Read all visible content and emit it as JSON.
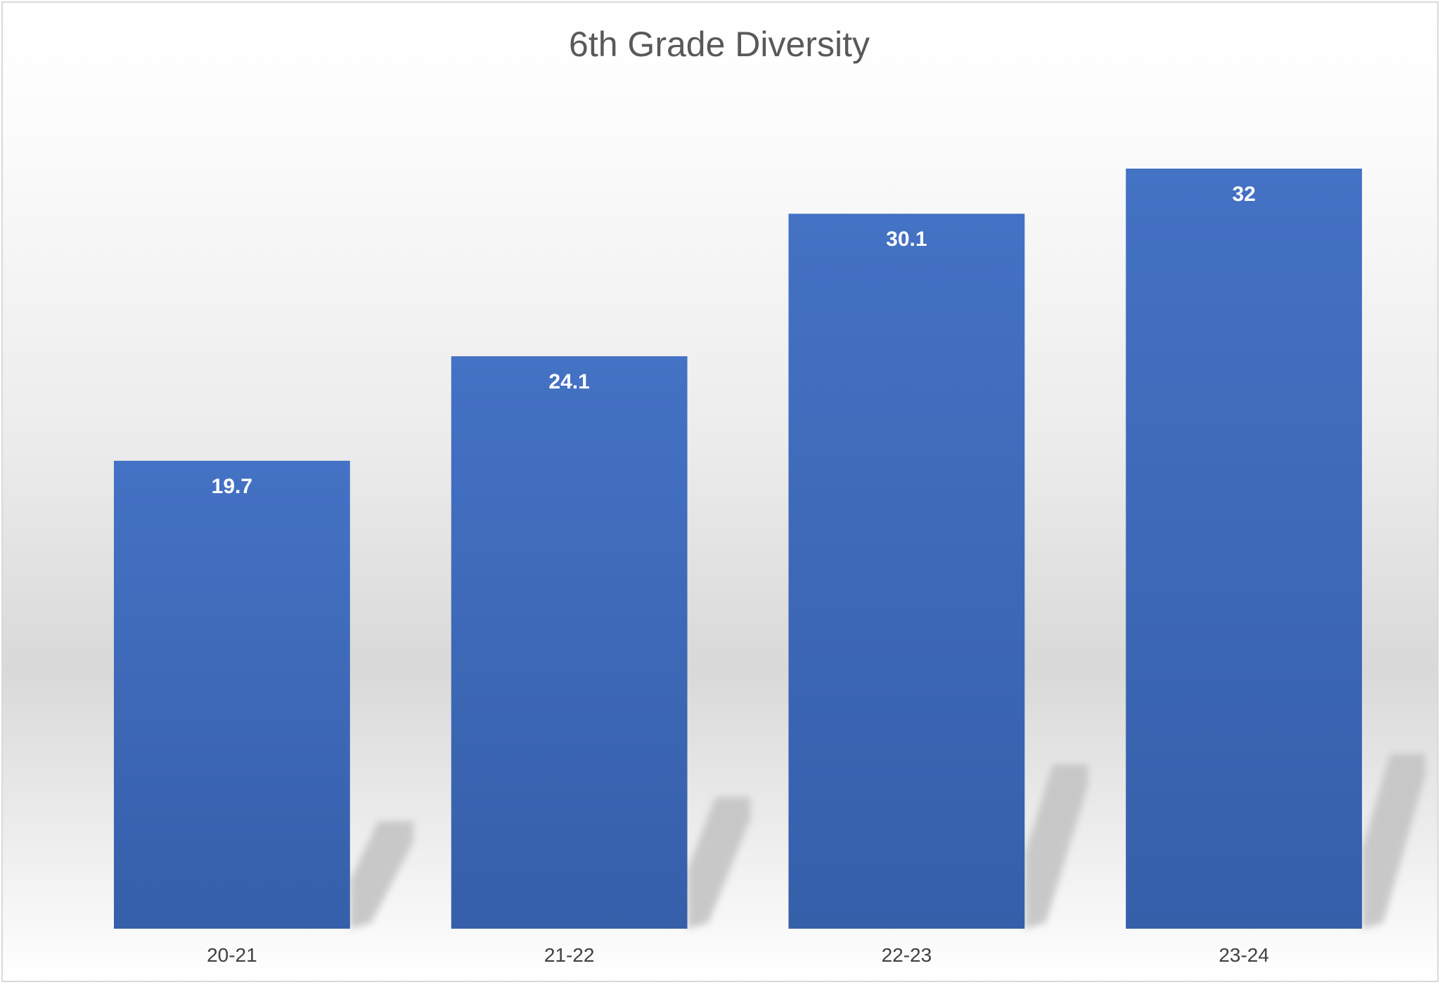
{
  "chart_data": {
    "type": "bar",
    "title": "6th Grade Diversity",
    "xlabel": "",
    "ylabel": "",
    "categories": [
      "20-21",
      "21-22",
      "22-23",
      "23-24"
    ],
    "values": [
      19.7,
      24.1,
      30.1,
      32
    ],
    "data_labels": [
      "19.7",
      "24.1",
      "30.1",
      "32"
    ],
    "ylim": [
      0,
      32
    ],
    "grid": false,
    "legend": "none",
    "colors": {
      "bar_top": "#4472C4",
      "bar_bottom": "#365FAA",
      "bg_light": "#FFFFFF",
      "bg_mid": "#D9D9D9",
      "shadow": "#C4C4C4",
      "border": "#D9D9D9"
    }
  }
}
